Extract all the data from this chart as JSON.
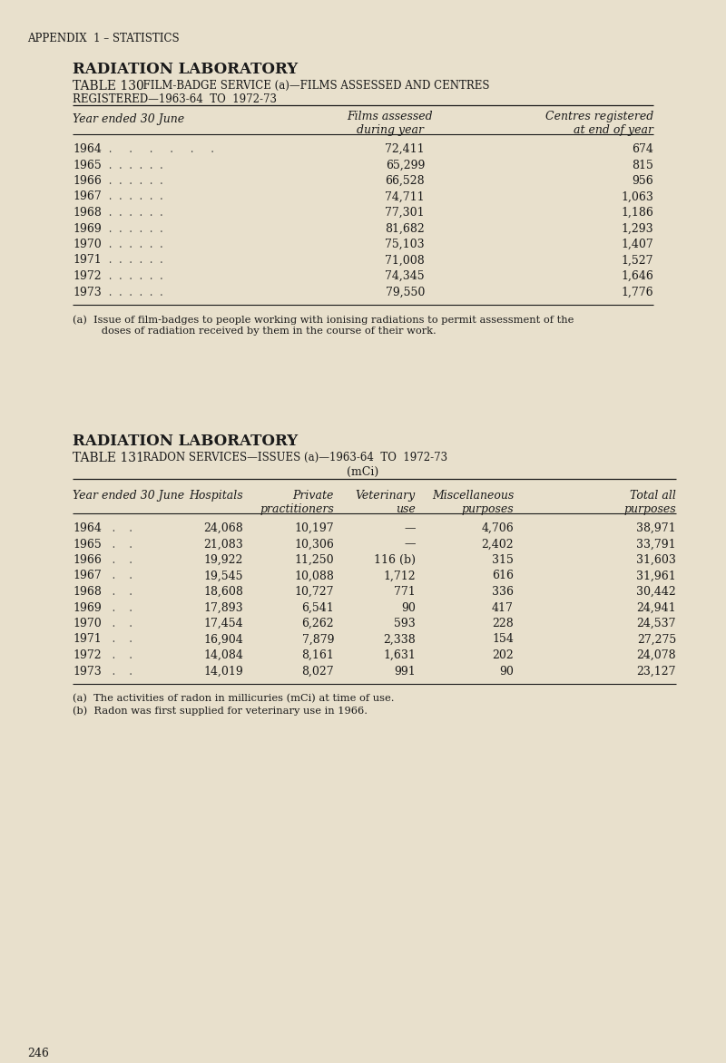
{
  "bg_color": "#e8e0cc",
  "text_color": "#1a1a1a",
  "page_number": "246",
  "appendix_header": "APPENDIX  1 – STATISTICS",
  "table130": {
    "section_title": "RADIATION LABORATORY",
    "table_label": "TABLE 130",
    "table_subtitle": "  FILM-BADGE SERVICE (a)—FILMS ASSESSED AND CENTRES",
    "table_subtitle2": "REGISTERED—1963-64  TO  1972-73",
    "col_header_left": "Year ended 30 June",
    "col_header_mid": "Films assessed\nduring year",
    "col_header_right": "Centres registered\nat end of year",
    "years": [
      "1964",
      "1965",
      "1966",
      "1967",
      "1968",
      "1969",
      "1970",
      "1971",
      "1972",
      "1973"
    ],
    "dots": [
      " .     .     .     .     .     .",
      " .  .  .  .  .  .",
      " .  .  .  .  .  .",
      " .  .  .  .  .  .",
      " .  .  .  .  .  .",
      " .  .  .  .  .  .",
      " .  .  .  .  .  .",
      " .  .  .  .  .  .",
      " .  .  .  .  .  .",
      " .  .  .  .  .  ."
    ],
    "films_assessed": [
      "72,411",
      "65,299",
      "66,528",
      "74,711",
      "77,301",
      "81,682",
      "75,103",
      "71,008",
      "74,345",
      "79,550"
    ],
    "centres_registered": [
      "674",
      "815",
      "956",
      "1,063",
      "1,186",
      "1,293",
      "1,407",
      "1,527",
      "1,646",
      "1,776"
    ],
    "footnote_line1": "(a)  Issue of film-badges to people working with ionising radiations to permit assessment of the",
    "footnote_line2": "      doses of radiation received by them in the course of their work."
  },
  "table131": {
    "section_title": "RADIATION LABORATORY",
    "table_label": "TABLE 131",
    "table_subtitle": "  RADON SERVICES—ISSUES (a)—1963-64  TO  1972-73",
    "table_subtitle2": "(mCi)",
    "col_year": "Year ended 30 June",
    "col_hospitals": "Hospitals",
    "col_private": "Private\npractitioners",
    "col_veterinary": "Veterinary\nuse",
    "col_misc": "Miscellaneous\npurposes",
    "col_total": "Total all\npurposes",
    "years": [
      "1964",
      "1965",
      "1966",
      "1967",
      "1968",
      "1969",
      "1970",
      "1971",
      "1972",
      "1973"
    ],
    "dots2": [
      "  .    .",
      "  .    .",
      "  .    .",
      "  .    .",
      "  .    .",
      "  .    .",
      "  .    .",
      "  .    .",
      "  .    .",
      "  .    ."
    ],
    "hospitals": [
      "24,068",
      "21,083",
      "19,922",
      "19,545",
      "18,608",
      "17,893",
      "17,454",
      "16,904",
      "14,084",
      "14,019"
    ],
    "private": [
      "10,197",
      "10,306",
      "11,250",
      "10,088",
      "10,727",
      "6,541",
      "6,262",
      "7,879",
      "8,161",
      "8,027"
    ],
    "veterinary": [
      "—",
      "—",
      "116 (b)",
      "1,712",
      "771",
      "90",
      "593",
      "2,338",
      "1,631",
      "991"
    ],
    "misc": [
      "4,706",
      "2,402",
      "315",
      "616",
      "336",
      "417",
      "228",
      "154",
      "202",
      "90"
    ],
    "total": [
      "38,971",
      "33,791",
      "31,603",
      "31,961",
      "30,442",
      "24,941",
      "24,537",
      "27,275",
      "24,078",
      "23,127"
    ],
    "footnote_a": "(a)  The activities of radon in millicuries (mCi) at time of use.",
    "footnote_b": "(b)  Radon was first supplied for veterinary use in 1966."
  }
}
